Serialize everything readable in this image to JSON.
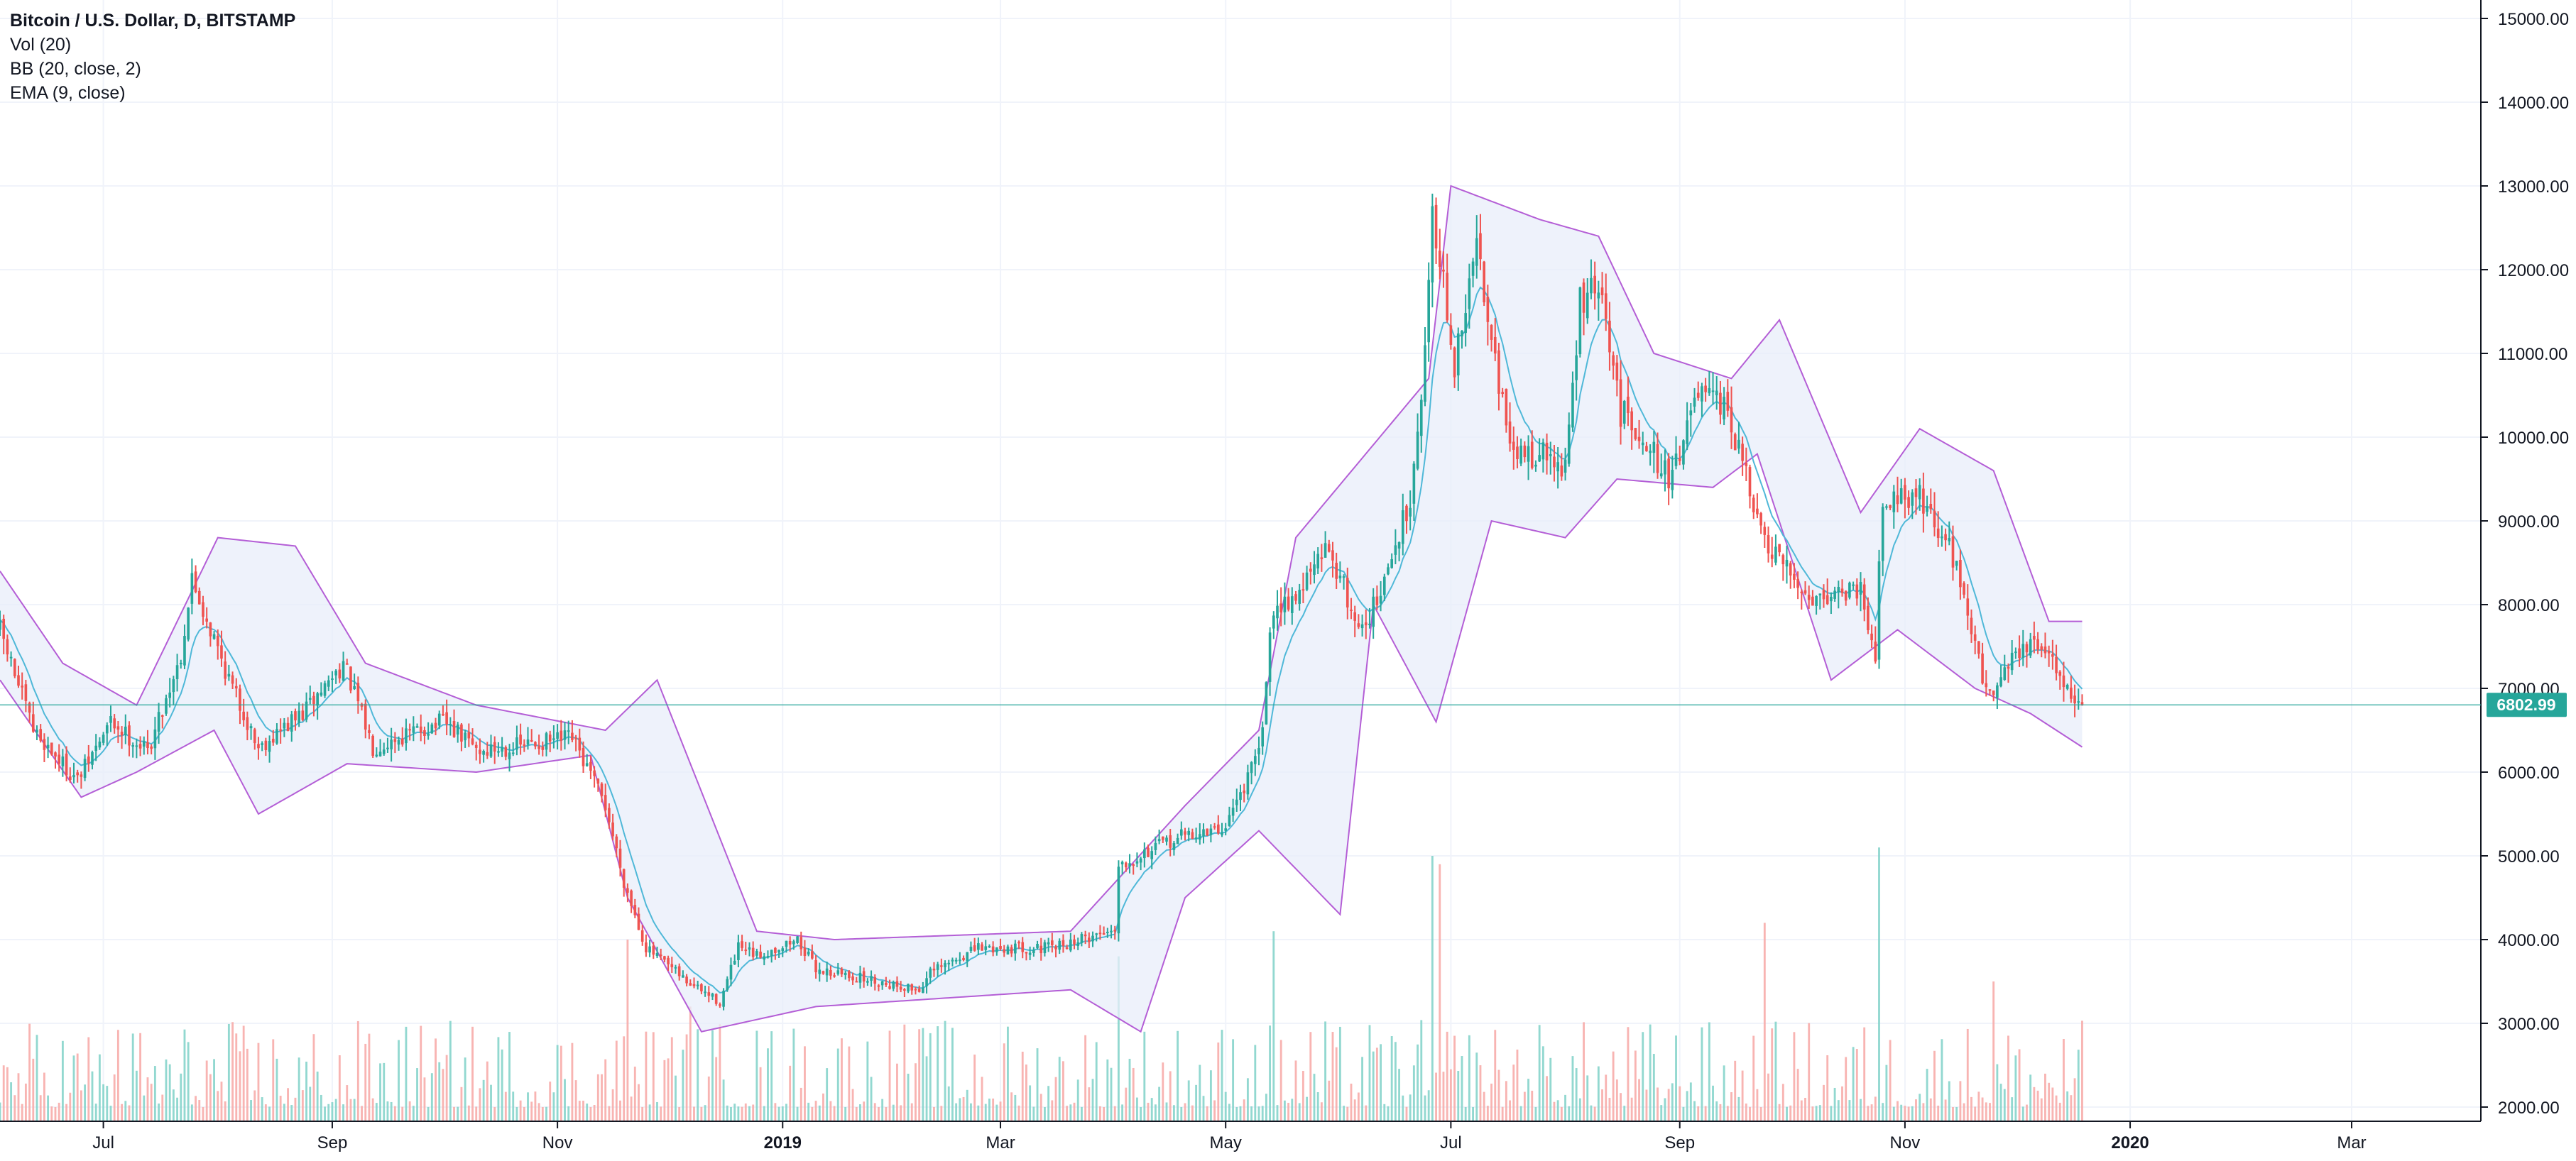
{
  "legend": {
    "title": "Bitcoin / U.S. Dollar, D, BITSTAMP",
    "volume": "Vol (20)",
    "bollinger": "BB (20, close, 2)",
    "ema": "EMA (9, close)"
  },
  "last_price_label": "6802.99",
  "colors": {
    "up": "#26a69a",
    "down": "#ef5350",
    "band": "#b45ed6",
    "band_fill": "#e8eef9",
    "ema": "#4fb8d8",
    "price_line": "#26a69a",
    "grid": "#f0f3fa",
    "axis_text": "#131722",
    "axis_line": "#131722"
  },
  "chart_data": {
    "type": "candlestick",
    "symbol": "Bitcoin / U.S. Dollar, D, BITSTAMP",
    "indicators": [
      "Vol (20)",
      "BB (20, close, 2)",
      "EMA (9, close)"
    ],
    "ylim": [
      2000,
      15000
    ],
    "y_ticks": [
      "2000.00",
      "3000.00",
      "4000.00",
      "5000.00",
      "6000.00",
      "7000.00",
      "8000.00",
      "9000.00",
      "10000.00",
      "11000.00",
      "12000.00",
      "13000.00",
      "14000.00",
      "15000.00"
    ],
    "x_range": [
      "2018-06-03",
      "2020-04-05"
    ],
    "x_ticks": [
      {
        "label": "Jul",
        "date": "2018-07-01",
        "bold": false
      },
      {
        "label": "Sep",
        "date": "2018-09-01",
        "bold": false
      },
      {
        "label": "Nov",
        "date": "2018-11-01",
        "bold": false
      },
      {
        "label": "2019",
        "date": "2019-01-01",
        "bold": true
      },
      {
        "label": "Mar",
        "date": "2019-03-01",
        "bold": false
      },
      {
        "label": "May",
        "date": "2019-05-01",
        "bold": false
      },
      {
        "label": "Jul",
        "date": "2019-07-01",
        "bold": false
      },
      {
        "label": "Sep",
        "date": "2019-09-01",
        "bold": false
      },
      {
        "label": "Nov",
        "date": "2019-11-01",
        "bold": false
      },
      {
        "label": "2020",
        "date": "2020-01-01",
        "bold": true
      },
      {
        "label": "Mar",
        "date": "2020-03-01",
        "bold": false
      }
    ],
    "last_price": 6802.99,
    "first_date": "2018-06-03",
    "close_anchors": [
      [
        "2018-06-03",
        7700
      ],
      [
        "2018-06-12",
        6500
      ],
      [
        "2018-06-24",
        5900
      ],
      [
        "2018-07-03",
        6600
      ],
      [
        "2018-07-13",
        6250
      ],
      [
        "2018-07-22",
        7400
      ],
      [
        "2018-07-25",
        8300
      ],
      [
        "2018-08-05",
        7000
      ],
      [
        "2018-08-12",
        6300
      ],
      [
        "2018-08-24",
        6700
      ],
      [
        "2018-09-04",
        7300
      ],
      [
        "2018-09-12",
        6300
      ],
      [
        "2018-10-01",
        6600
      ],
      [
        "2018-10-11",
        6250
      ],
      [
        "2018-11-05",
        6400
      ],
      [
        "2018-11-14",
        5600
      ],
      [
        "2018-11-19",
        4700
      ],
      [
        "2018-11-25",
        3900
      ],
      [
        "2018-12-06",
        3500
      ],
      [
        "2018-12-15",
        3250
      ],
      [
        "2018-12-20",
        3900
      ],
      [
        "2018-12-25",
        3800
      ],
      [
        "2019-01-05",
        4000
      ],
      [
        "2019-01-10",
        3650
      ],
      [
        "2019-02-07",
        3400
      ],
      [
        "2019-02-10",
        3600
      ],
      [
        "2019-02-23",
        3900
      ],
      [
        "2019-03-15",
        3900
      ],
      [
        "2019-03-30",
        4100
      ],
      [
        "2019-04-01",
        4150
      ],
      [
        "2019-04-02",
        4900
      ],
      [
        "2019-04-20",
        5250
      ],
      [
        "2019-04-30",
        5300
      ],
      [
        "2019-05-10",
        6200
      ],
      [
        "2019-05-14",
        8000
      ],
      [
        "2019-05-20",
        8100
      ],
      [
        "2019-05-29",
        8700
      ],
      [
        "2019-06-06",
        7700
      ],
      [
        "2019-06-12",
        8100
      ],
      [
        "2019-06-20",
        9300
      ],
      [
        "2019-06-24",
        11000
      ],
      [
        "2019-06-26",
        12800
      ],
      [
        "2019-07-02",
        10800
      ],
      [
        "2019-07-08",
        12300
      ],
      [
        "2019-07-12",
        11300
      ],
      [
        "2019-07-17",
        9800
      ],
      [
        "2019-07-26",
        9800
      ],
      [
        "2019-08-01",
        9600
      ],
      [
        "2019-08-05",
        11600
      ],
      [
        "2019-08-10",
        11800
      ],
      [
        "2019-08-16",
        10300
      ],
      [
        "2019-08-21",
        10100
      ],
      [
        "2019-08-29",
        9500
      ],
      [
        "2019-09-06",
        10500
      ],
      [
        "2019-09-14",
        10300
      ],
      [
        "2019-09-24",
        8700
      ],
      [
        "2019-10-06",
        8100
      ],
      [
        "2019-10-20",
        8200
      ],
      [
        "2019-10-24",
        7450
      ],
      [
        "2019-10-26",
        9300
      ],
      [
        "2019-11-05",
        9300
      ],
      [
        "2019-11-15",
        8500
      ],
      [
        "2019-11-22",
        7100
      ],
      [
        "2019-11-25",
        7000
      ],
      [
        "2019-12-01",
        7450
      ],
      [
        "2019-12-08",
        7500
      ],
      [
        "2019-12-14",
        7100
      ],
      [
        "2019-12-18",
        6800
      ],
      [
        "2019-12-19",
        6803
      ]
    ],
    "bb_upper_anchors": [
      [
        "2018-06-03",
        8400
      ],
      [
        "2018-06-20",
        7300
      ],
      [
        "2018-07-10",
        6800
      ],
      [
        "2018-08-01",
        8800
      ],
      [
        "2018-08-22",
        8700
      ],
      [
        "2018-09-10",
        7300
      ],
      [
        "2018-10-10",
        6800
      ],
      [
        "2018-11-14",
        6500
      ],
      [
        "2018-11-28",
        7100
      ],
      [
        "2018-12-25",
        4100
      ],
      [
        "2019-01-15",
        4000
      ],
      [
        "2019-03-20",
        4100
      ],
      [
        "2019-04-20",
        5600
      ],
      [
        "2019-05-10",
        6500
      ],
      [
        "2019-05-20",
        8800
      ],
      [
        "2019-06-25",
        10700
      ],
      [
        "2019-07-01",
        13000
      ],
      [
        "2019-07-25",
        12600
      ],
      [
        "2019-08-10",
        12400
      ],
      [
        "2019-08-25",
        11000
      ],
      [
        "2019-09-15",
        10700
      ],
      [
        "2019-09-28",
        11400
      ],
      [
        "2019-10-20",
        9100
      ],
      [
        "2019-11-05",
        10100
      ],
      [
        "2019-11-25",
        9600
      ],
      [
        "2019-12-10",
        7800
      ],
      [
        "2019-12-19",
        7800
      ]
    ],
    "bb_lower_anchors": [
      [
        "2018-06-03",
        7100
      ],
      [
        "2018-06-25",
        5700
      ],
      [
        "2018-07-10",
        6000
      ],
      [
        "2018-07-31",
        6500
      ],
      [
        "2018-08-12",
        5500
      ],
      [
        "2018-09-05",
        6100
      ],
      [
        "2018-10-10",
        6000
      ],
      [
        "2018-11-10",
        6200
      ],
      [
        "2018-11-20",
        4500
      ],
      [
        "2018-12-10",
        2900
      ],
      [
        "2019-01-10",
        3200
      ],
      [
        "2019-03-20",
        3400
      ],
      [
        "2019-04-08",
        2900
      ],
      [
        "2019-04-20",
        4500
      ],
      [
        "2019-05-10",
        5300
      ],
      [
        "2019-06-01",
        4300
      ],
      [
        "2019-06-10",
        8000
      ],
      [
        "2019-06-27",
        6600
      ],
      [
        "2019-07-12",
        9000
      ],
      [
        "2019-08-01",
        8800
      ],
      [
        "2019-08-15",
        9500
      ],
      [
        "2019-09-10",
        9400
      ],
      [
        "2019-09-22",
        9800
      ],
      [
        "2019-10-12",
        7100
      ],
      [
        "2019-10-30",
        7700
      ],
      [
        "2019-11-20",
        7000
      ],
      [
        "2019-12-05",
        6700
      ],
      [
        "2019-12-19",
        6300
      ]
    ],
    "volume_spikes": [
      [
        "2018-11-20",
        4000
      ],
      [
        "2018-12-07",
        3200
      ],
      [
        "2019-04-02",
        3800
      ],
      [
        "2019-05-14",
        4100
      ],
      [
        "2019-06-26",
        5000
      ],
      [
        "2019-06-28",
        4900
      ],
      [
        "2019-09-24",
        4200
      ],
      [
        "2019-10-25",
        5100
      ],
      [
        "2019-11-25",
        3500
      ]
    ],
    "volume_baseline": [
      2000,
      3000
    ]
  }
}
